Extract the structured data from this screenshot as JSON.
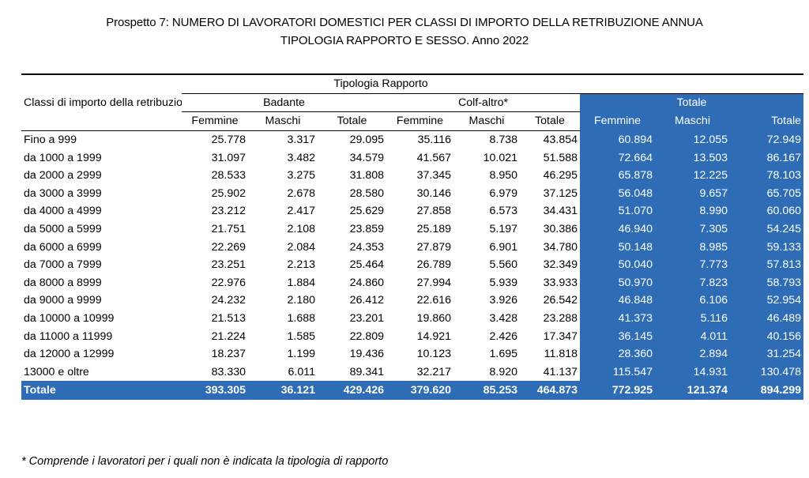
{
  "title_line1": "Prospetto 7: NUMERO DI LAVORATORI DOMESTICI PER CLASSI DI IMPORTO DELLA RETRIBUZIONE ANNUA",
  "title_line2": "TIPOLOGIA RAPPORTO E SESSO.  Anno 2022",
  "headers": {
    "class_col": "Classi di importo della retribuzione annua",
    "tipologia": "Tipologia Rapporto",
    "badante": "Badante",
    "colf": "Colf-altro*",
    "totale_group": "Totale",
    "femmine": "Femmine",
    "maschi": "Maschi",
    "totale": "Totale"
  },
  "rows": [
    {
      "label": "Fino a 999",
      "v": [
        "25.778",
        "3.317",
        "29.095",
        "35.116",
        "8.738",
        "43.854",
        "60.894",
        "12.055",
        "72.949"
      ]
    },
    {
      "label": "da 1000 a 1999",
      "v": [
        "31.097",
        "3.482",
        "34.579",
        "41.567",
        "10.021",
        "51.588",
        "72.664",
        "13.503",
        "86.167"
      ]
    },
    {
      "label": "da 2000 a 2999",
      "v": [
        "28.533",
        "3.275",
        "31.808",
        "37.345",
        "8.950",
        "46.295",
        "65.878",
        "12.225",
        "78.103"
      ]
    },
    {
      "label": "da 3000 a 3999",
      "v": [
        "25.902",
        "2.678",
        "28.580",
        "30.146",
        "6.979",
        "37.125",
        "56.048",
        "9.657",
        "65.705"
      ]
    },
    {
      "label": "da 4000 a 4999",
      "v": [
        "23.212",
        "2.417",
        "25.629",
        "27.858",
        "6.573",
        "34.431",
        "51.070",
        "8.990",
        "60.060"
      ]
    },
    {
      "label": "da 5000 a 5999",
      "v": [
        "21.751",
        "2.108",
        "23.859",
        "25.189",
        "5.197",
        "30.386",
        "46.940",
        "7.305",
        "54.245"
      ]
    },
    {
      "label": "da 6000 a 6999",
      "v": [
        "22.269",
        "2.084",
        "24.353",
        "27.879",
        "6.901",
        "34.780",
        "50.148",
        "8.985",
        "59.133"
      ]
    },
    {
      "label": "da 7000 a 7999",
      "v": [
        "23.251",
        "2.213",
        "25.464",
        "26.789",
        "5.560",
        "32.349",
        "50.040",
        "7.773",
        "57.813"
      ]
    },
    {
      "label": "da 8000 a 8999",
      "v": [
        "22.976",
        "1.884",
        "24.860",
        "27.994",
        "5.939",
        "33.933",
        "50.970",
        "7.823",
        "58.793"
      ]
    },
    {
      "label": "da 9000 a 9999",
      "v": [
        "24.232",
        "2.180",
        "26.412",
        "22.616",
        "3.926",
        "26.542",
        "46.848",
        "6.106",
        "52.954"
      ]
    },
    {
      "label": "da 10000 a 10999",
      "v": [
        "21.513",
        "1.688",
        "23.201",
        "19.860",
        "3.428",
        "23.288",
        "41.373",
        "5.116",
        "46.489"
      ]
    },
    {
      "label": "da 11000 a 11999",
      "v": [
        "21.224",
        "1.585",
        "22.809",
        "14.921",
        "2.426",
        "17.347",
        "36.145",
        "4.011",
        "40.156"
      ]
    },
    {
      "label": "da 12000 a 12999",
      "v": [
        "18.237",
        "1.199",
        "19.436",
        "10.123",
        "1.695",
        "11.818",
        "28.360",
        "2.894",
        "31.254"
      ]
    },
    {
      "label": "13000 e oltre",
      "v": [
        "83.330",
        "6.011",
        "89.341",
        "32.217",
        "8.920",
        "41.137",
        "115.547",
        "14.931",
        "130.478"
      ]
    }
  ],
  "total_row": {
    "label": "Totale",
    "v": [
      "393.305",
      "36.121",
      "429.426",
      "379.620",
      "85.253",
      "464.873",
      "772.925",
      "121.374",
      "894.299"
    ]
  },
  "footnote": "* Comprende i lavoratori per i quali non è indicata la tipologia di  rapporto",
  "colors": {
    "accent_blue": "#2e6db5"
  }
}
